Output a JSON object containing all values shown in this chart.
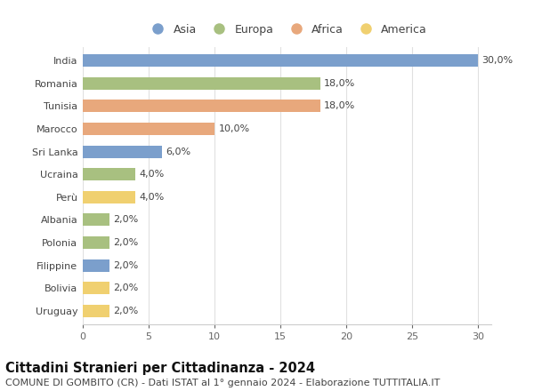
{
  "countries": [
    "India",
    "Romania",
    "Tunisia",
    "Marocco",
    "Sri Lanka",
    "Ucraina",
    "Perù",
    "Albania",
    "Polonia",
    "Filippine",
    "Bolivia",
    "Uruguay"
  ],
  "values": [
    30.0,
    18.0,
    18.0,
    10.0,
    6.0,
    4.0,
    4.0,
    2.0,
    2.0,
    2.0,
    2.0,
    2.0
  ],
  "continents": [
    "Asia",
    "Europa",
    "Africa",
    "Africa",
    "Asia",
    "Europa",
    "America",
    "Europa",
    "Europa",
    "Asia",
    "America",
    "America"
  ],
  "colors": {
    "Asia": "#7B9FCC",
    "Europa": "#A8C080",
    "Africa": "#E8A87C",
    "America": "#F0D070"
  },
  "xlim": [
    0,
    31
  ],
  "xticks": [
    0,
    5,
    10,
    15,
    20,
    25,
    30
  ],
  "title": "Cittadini Stranieri per Cittadinanza - 2024",
  "subtitle": "COMUNE DI GOMBITO (CR) - Dati ISTAT al 1° gennaio 2024 - Elaborazione TUTTITALIA.IT",
  "title_fontsize": 10.5,
  "subtitle_fontsize": 8,
  "label_fontsize": 8,
  "tick_fontsize": 8,
  "background_color": "#ffffff",
  "bar_height": 0.55,
  "grid_color": "#e0e0e0",
  "legend_order": [
    "Asia",
    "Europa",
    "Africa",
    "America"
  ]
}
